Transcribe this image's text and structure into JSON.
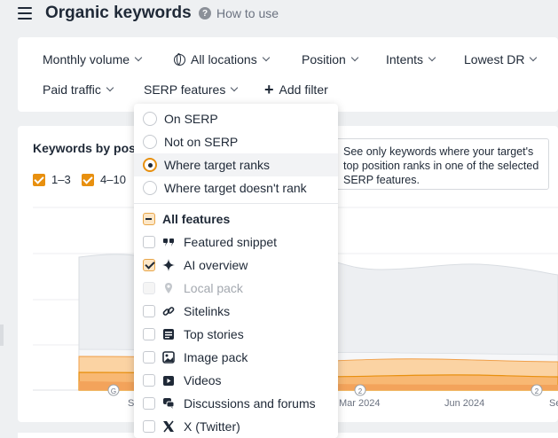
{
  "header": {
    "title": "Organic keywords",
    "how_to_use": "How to use"
  },
  "filters": {
    "monthly_volume": "Monthly volume",
    "all_locations": "All locations",
    "position": "Position",
    "intents": "Intents",
    "lowest_dr": "Lowest DR",
    "paid_traffic": "Paid traffic",
    "serp_features": "SERP features",
    "add_filter": "Add filter"
  },
  "chart_card": {
    "title": "Keywords by pos",
    "legend": [
      "1–3",
      "4–10"
    ]
  },
  "chart_data": {
    "type": "area",
    "x": [
      "S",
      "Mar 2024",
      "Jun 2024",
      "Se"
    ],
    "series": [],
    "annotations": [
      "G",
      "2",
      "2"
    ]
  },
  "dropdown": {
    "radio_options": [
      {
        "label": "On SERP",
        "selected": false
      },
      {
        "label": "Not on SERP",
        "selected": false
      },
      {
        "label": "Where target ranks",
        "selected": true
      },
      {
        "label": "Where target doesn't rank",
        "selected": false
      }
    ],
    "all_features": "All features",
    "features": [
      {
        "label": "Featured snippet",
        "icon": "quote-icon",
        "state": "unchecked"
      },
      {
        "label": "AI overview",
        "icon": "sparkle-icon",
        "state": "checked"
      },
      {
        "label": "Local pack",
        "icon": "map-pin-icon",
        "state": "disabled"
      },
      {
        "label": "Sitelinks",
        "icon": "link-icon",
        "state": "unchecked"
      },
      {
        "label": "Top stories",
        "icon": "newspaper-icon",
        "state": "unchecked"
      },
      {
        "label": "Image pack",
        "icon": "image-icon",
        "state": "unchecked"
      },
      {
        "label": "Videos",
        "icon": "video-icon",
        "state": "unchecked"
      },
      {
        "label": "Discussions and forums",
        "icon": "chat-icon",
        "state": "unchecked"
      },
      {
        "label": "X (Twitter)",
        "icon": "x-twitter-icon",
        "state": "unchecked"
      }
    ]
  },
  "tooltip": {
    "text": "See only keywords where your target's top position ranks in one of the selected SERP features."
  },
  "colors": {
    "accent": "#e8900f",
    "background": "#eef0f2"
  }
}
